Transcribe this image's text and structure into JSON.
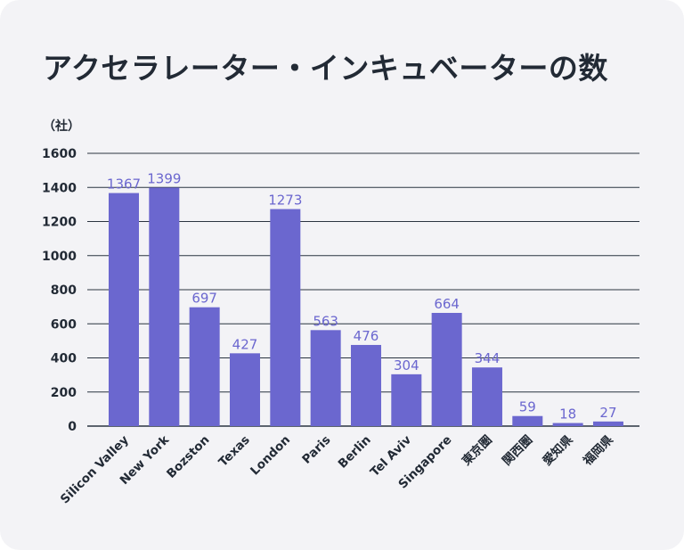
{
  "title": "アクセラレーター・インキュベーターの数",
  "unit_label": "（社）",
  "colors": {
    "bar": "#6b67cf",
    "value_label": "#6b67cf",
    "grid": "#2b3440",
    "text": "#222a35",
    "background": "#f3f3f6"
  },
  "chart_data": {
    "type": "bar",
    "title": "アクセラレーター・インキュベーターの数",
    "ylabel": "（社）",
    "xlabel": "",
    "ylim": [
      0,
      1600
    ],
    "yticks": [
      0,
      200,
      400,
      600,
      800,
      1000,
      1200,
      1400,
      1600
    ],
    "grid": true,
    "categories": [
      "Silicon Valley",
      "New York",
      "Bozston",
      "Texas",
      "London",
      "Paris",
      "Berlin",
      "Tel Aviv",
      "Singapore",
      "東京圏",
      "関西圏",
      "愛知県",
      "福岡県"
    ],
    "values": [
      1367,
      1399,
      697,
      427,
      1273,
      563,
      476,
      304,
      664,
      344,
      59,
      18,
      27
    ]
  }
}
